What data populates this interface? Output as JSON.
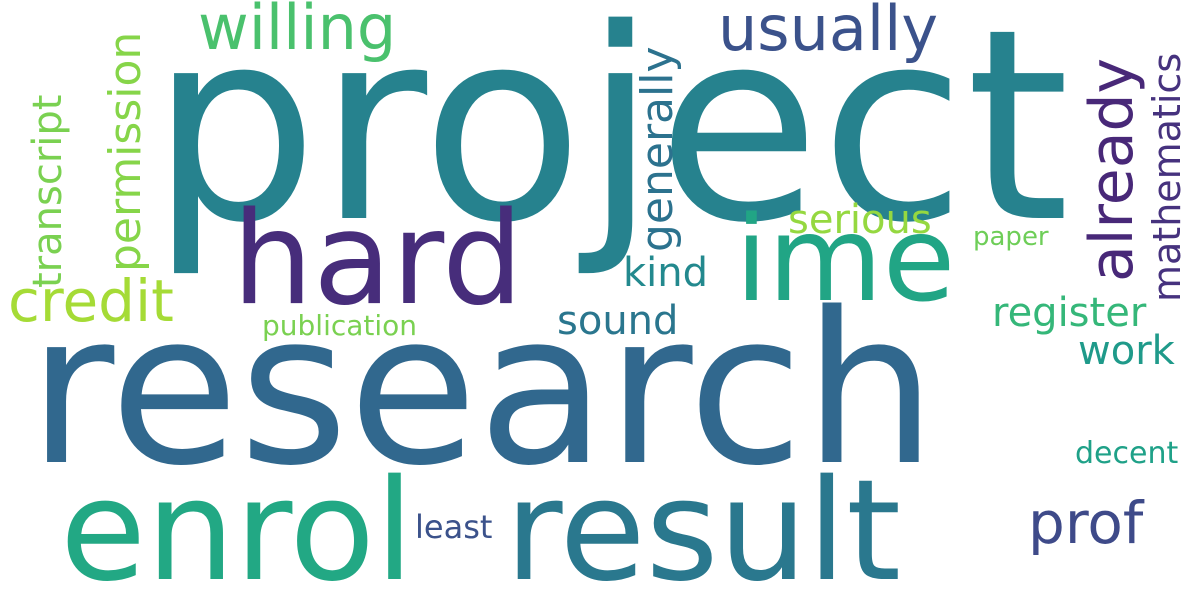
{
  "words": {
    "project": {
      "text": "project",
      "color": "#26828e"
    },
    "research": {
      "text": "research",
      "color": "#31688e"
    },
    "hard": {
      "text": "hard",
      "color": "#472d7b"
    },
    "ime": {
      "text": "ime",
      "color": "#21a585"
    },
    "enrol": {
      "text": "enrol",
      "color": "#22a884"
    },
    "result": {
      "text": "result",
      "color": "#2a788e"
    },
    "willing": {
      "text": "willing",
      "color": "#4ac16d"
    },
    "usually": {
      "text": "usually",
      "color": "#3b528b"
    },
    "credit": {
      "text": "credit",
      "color": "#a5db36"
    },
    "prof": {
      "text": "prof",
      "color": "#3e4a89"
    },
    "already": {
      "text": "already",
      "color": "#482878"
    },
    "mathematics": {
      "text": "mathematics",
      "color": "#46327e"
    },
    "generally": {
      "text": "generally",
      "color": "#2c728e"
    },
    "permission": {
      "text": "permission",
      "color": "#86d549"
    },
    "transcript": {
      "text": "transcript",
      "color": "#7ad151"
    },
    "serious": {
      "text": "serious",
      "color": "#95d840"
    },
    "sound": {
      "text": "sound",
      "color": "#2a768e"
    },
    "kind": {
      "text": "kind",
      "color": "#23898e"
    },
    "register": {
      "text": "register",
      "color": "#35b779"
    },
    "work": {
      "text": "work",
      "color": "#1f9a8a"
    },
    "publication": {
      "text": "publication",
      "color": "#7ad151"
    },
    "paper": {
      "text": "paper",
      "color": "#6ece58"
    },
    "decent": {
      "text": "decent",
      "color": "#1fa188"
    },
    "least": {
      "text": "least",
      "color": "#3b528b"
    }
  }
}
